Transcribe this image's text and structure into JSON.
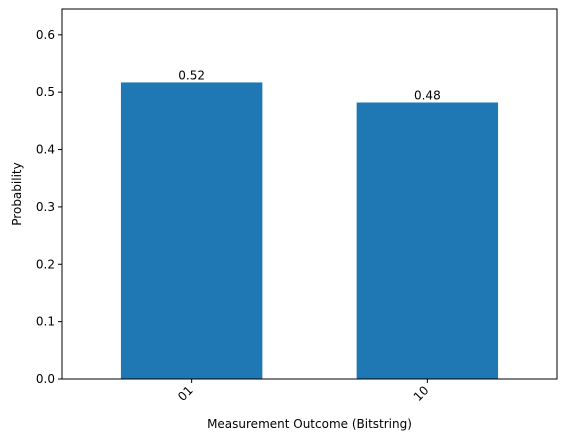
{
  "chart_data": {
    "type": "bar",
    "categories": [
      "01",
      "10"
    ],
    "values": [
      0.517,
      0.482
    ],
    "data_labels": [
      "0.52",
      "0.48"
    ],
    "title": "",
    "xlabel": "Measurement Outcome (Bitstring)",
    "ylabel": "Probability",
    "ylim": [
      0,
      0.645
    ],
    "yticks": [
      0.0,
      0.1,
      0.2,
      0.3,
      0.4,
      0.5,
      0.6
    ],
    "ytick_labels": [
      "0.0",
      "0.1",
      "0.2",
      "0.3",
      "0.4",
      "0.5",
      "0.6"
    ],
    "xtick_rotation": 45,
    "grid": false,
    "legend": "none",
    "bar_color": "#1f77b4"
  }
}
